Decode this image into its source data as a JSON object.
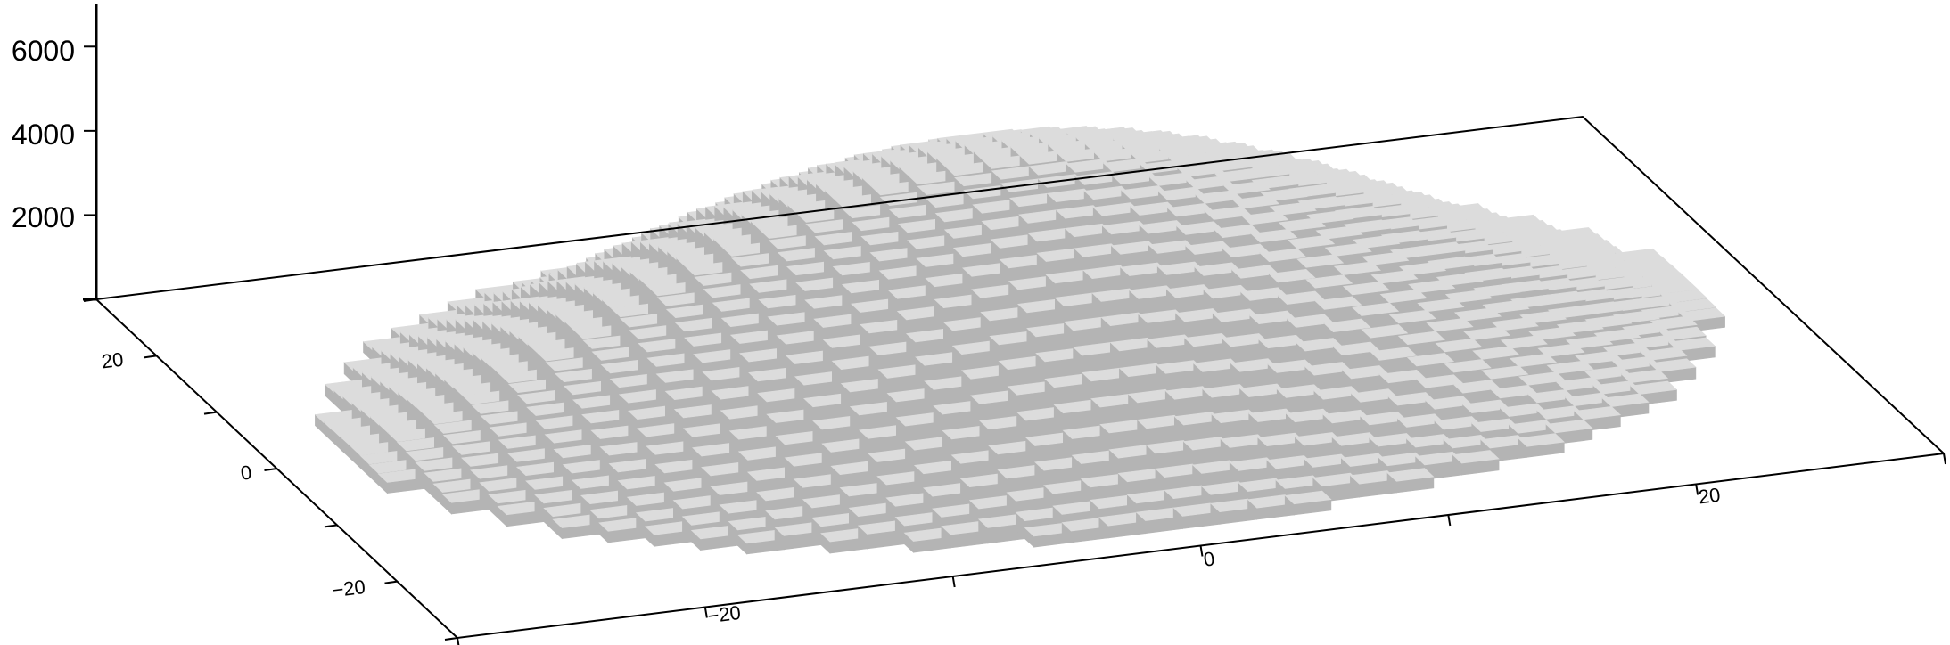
{
  "chart_data": {
    "type": "3d-bar",
    "title": "",
    "xlabel": "",
    "ylabel": "",
    "zlabel": "",
    "xlim": [
      -30,
      30
    ],
    "ylim": [
      -30,
      30
    ],
    "zlim": [
      0,
      7000
    ],
    "x_ticks": [
      -20,
      0,
      20
    ],
    "y_ticks": [
      -20,
      0,
      20
    ],
    "z_ticks": [
      2000,
      4000,
      6000
    ],
    "x_tick_labels": [
      "−20",
      "0",
      "20"
    ],
    "y_tick_labels": [
      "−20",
      "0",
      "20"
    ],
    "z_tick_labels": [
      "2000",
      "4000",
      "6000"
    ],
    "grid": false,
    "bar_color": "#b4b4b4",
    "bar_top_color": "#dcdcdc",
    "surface": {
      "shape": "dome",
      "peak_value": 5000,
      "footprint_radius": 27,
      "grid_spacing": 1.5
    }
  }
}
